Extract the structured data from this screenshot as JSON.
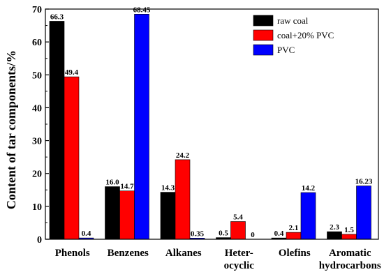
{
  "chart_data": {
    "type": "bar",
    "ylabel": "Content of tar components/%",
    "ylim": [
      0,
      70
    ],
    "yticks": [
      0,
      10,
      20,
      30,
      40,
      50,
      60,
      70
    ],
    "categories": [
      [
        "Phenols"
      ],
      [
        "Benzenes"
      ],
      [
        "Alkanes"
      ],
      [
        "Heter-",
        "ocyclic"
      ],
      [
        "Olefins"
      ],
      [
        "Aromatic",
        "hydrocarbons"
      ]
    ],
    "series": [
      {
        "name": "raw coal",
        "color": "#000000",
        "values": [
          66.3,
          16.0,
          14.3,
          0.5,
          0.4,
          2.3
        ],
        "labels": [
          "66.3",
          "16.0",
          "14.3",
          "0.5",
          "0.4",
          "2.3"
        ]
      },
      {
        "name": "coal+20% PVC",
        "color": "#ff0000",
        "values": [
          49.4,
          14.7,
          24.2,
          5.4,
          2.1,
          1.5
        ],
        "labels": [
          "49.4",
          "14.7",
          "24.2",
          "5.4",
          "2.1",
          "1.5"
        ]
      },
      {
        "name": "PVC",
        "color": "#0000ff",
        "values": [
          0.4,
          68.45,
          0.35,
          0,
          14.2,
          16.23
        ],
        "labels": [
          "0.4",
          "68.45",
          "0.35",
          "0",
          "14.2",
          "16.23"
        ]
      }
    ],
    "legend_position": "top-right",
    "grid": false
  }
}
